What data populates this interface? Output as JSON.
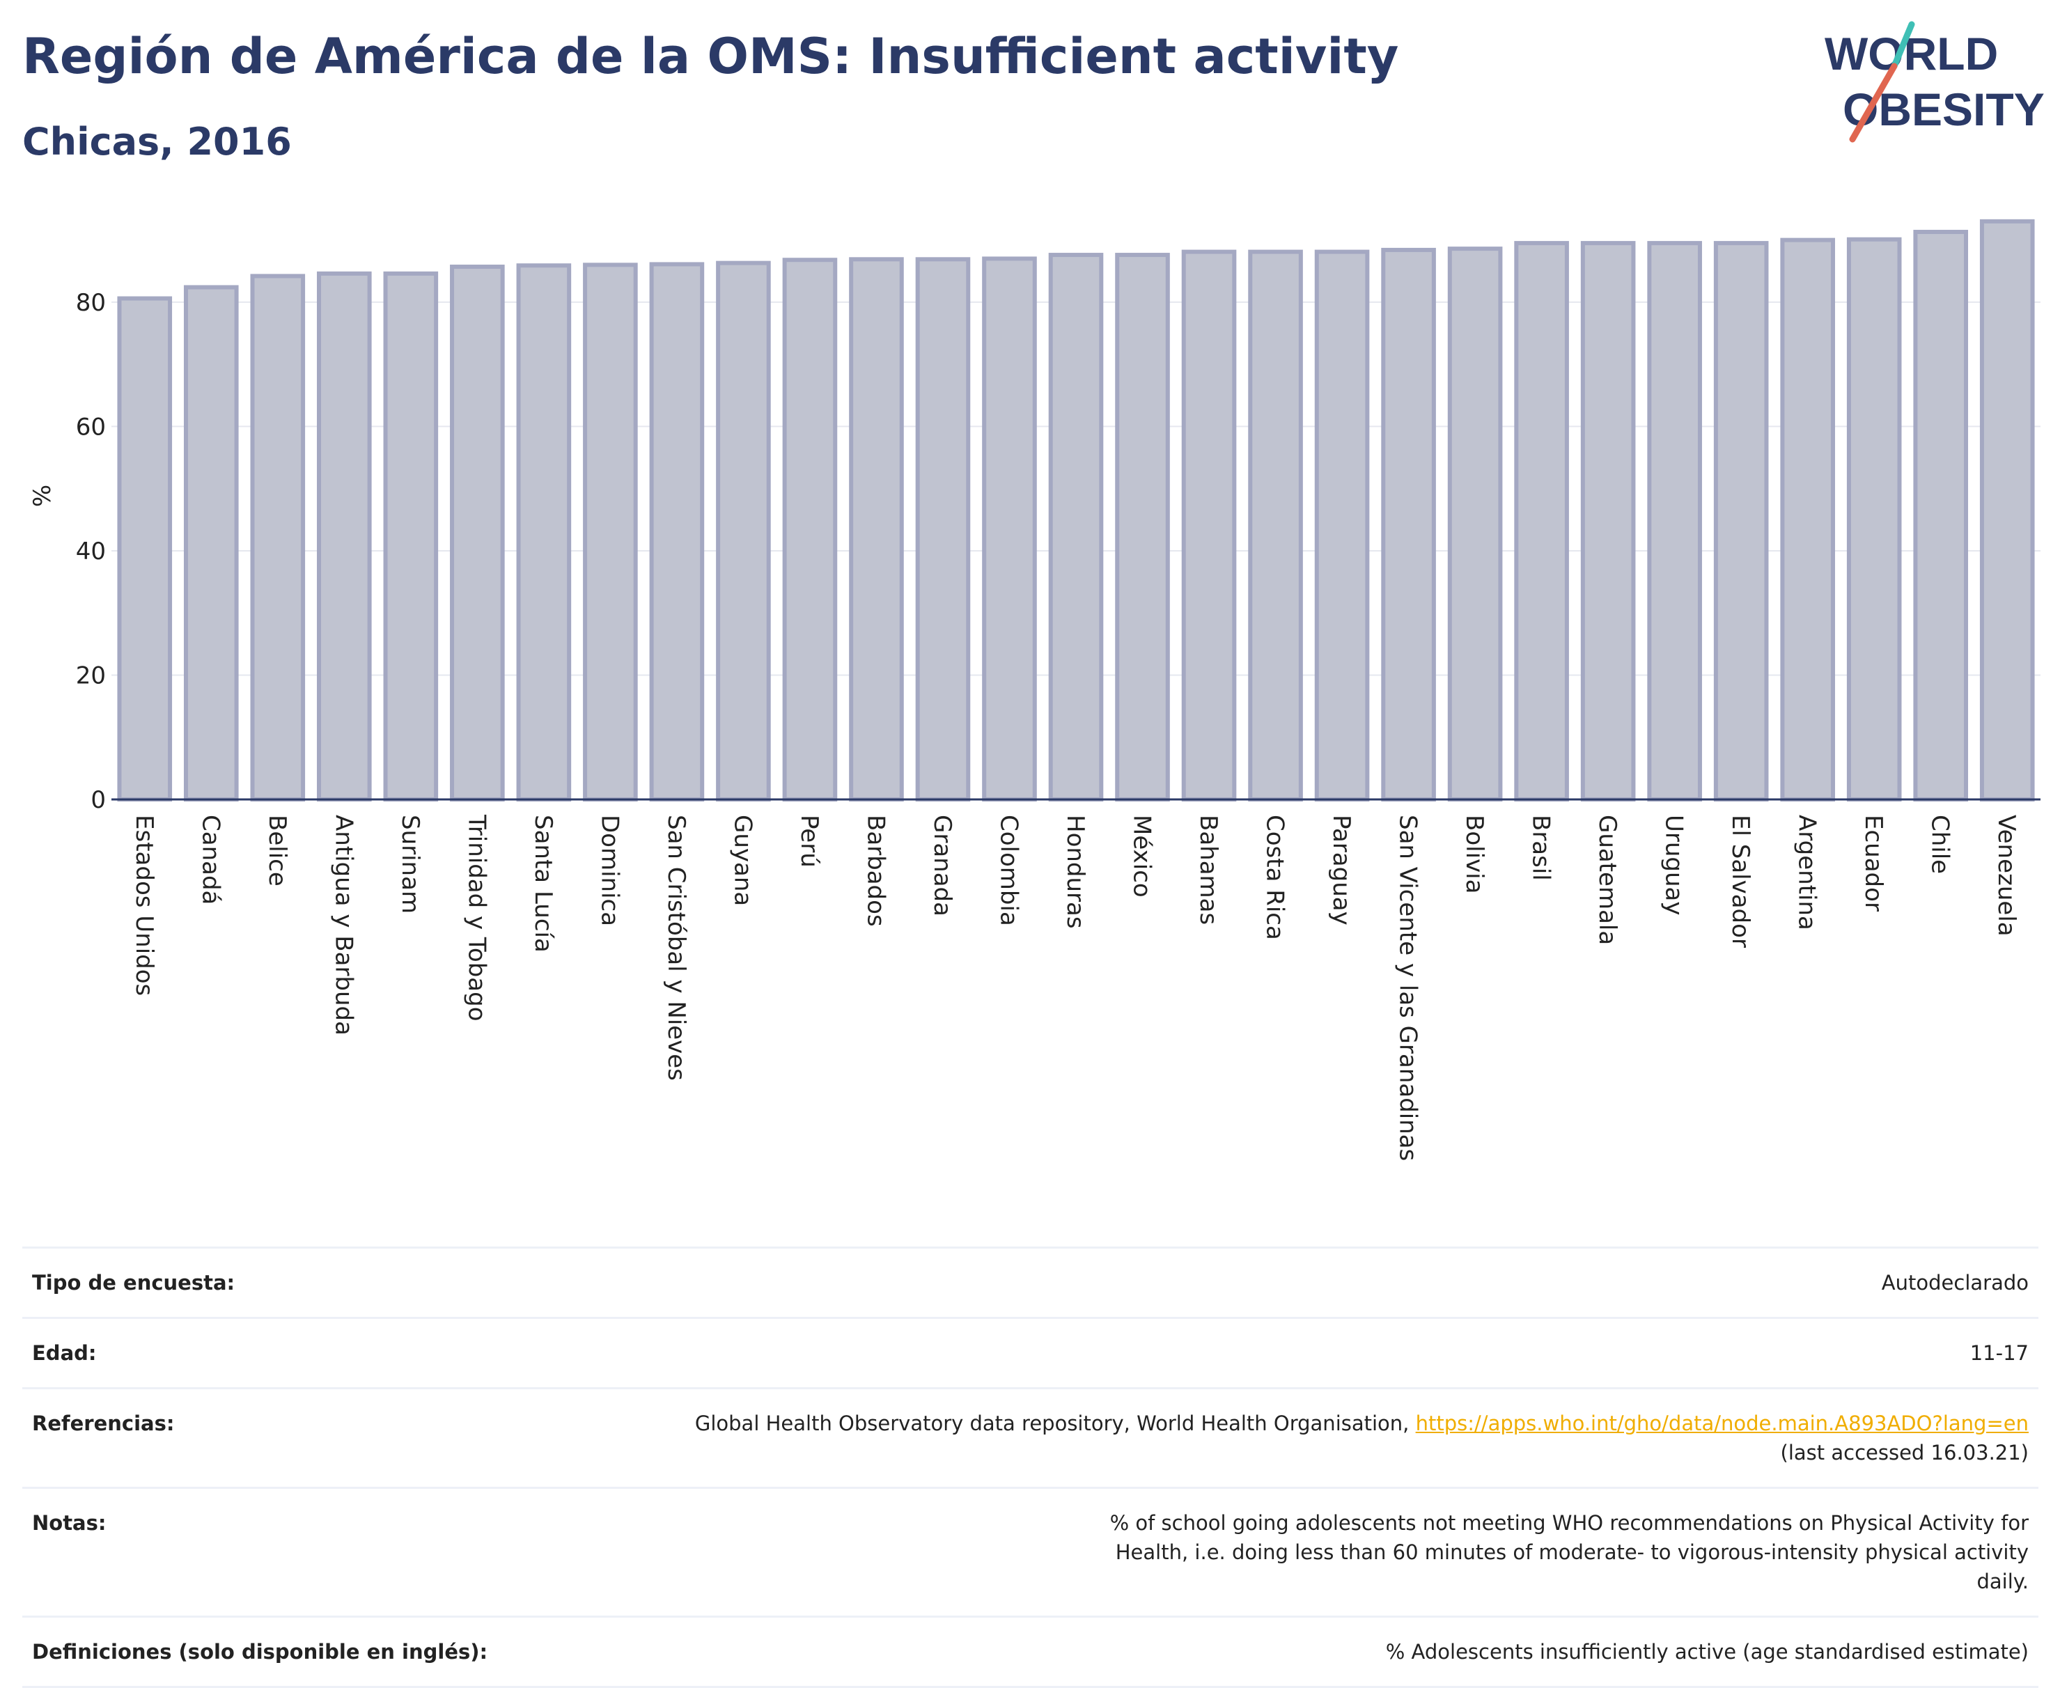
{
  "header": {
    "title": "Región de América de la OMS: Insufficient activity",
    "subtitle": "Chicas, 2016"
  },
  "logo": {
    "line1": "WORLD",
    "line2": "OBESITY",
    "colors": {
      "text": "#2b3a67",
      "slash_teal": "#3fbfb5",
      "slash_red": "#e06650"
    }
  },
  "chart_data": {
    "type": "bar",
    "title": "Región de América de la OMS: Insufficient activity",
    "subtitle": "Chicas, 2016",
    "ylabel": "%",
    "xlabel": "",
    "ylim": [
      0,
      95
    ],
    "yticks": [
      0,
      20,
      40,
      60,
      80
    ],
    "grid": true,
    "categories": [
      "Estados Unidos",
      "Canadá",
      "Belice",
      "Antigua y Barbuda",
      "Surinam",
      "Trinidad y Tobago",
      "Santa Lucía",
      "Dominica",
      "San Cristóbal y Nieves",
      "Guyana",
      "Perú",
      "Barbados",
      "Granada",
      "Colombia",
      "Honduras",
      "México",
      "Bahamas",
      "Costa Rica",
      "Paraguay",
      "San Vicente y las Granadinas",
      "Bolivia",
      "Brasil",
      "Guatemala",
      "Uruguay",
      "El Salvador",
      "Argentina",
      "Ecuador",
      "Chile",
      "Venezuela"
    ],
    "values": [
      80.6,
      82.4,
      84.2,
      84.6,
      84.6,
      85.7,
      85.9,
      86.0,
      86.1,
      86.3,
      86.8,
      86.9,
      86.9,
      87.0,
      87.6,
      87.6,
      88.1,
      88.1,
      88.1,
      88.4,
      88.6,
      89.5,
      89.5,
      89.5,
      89.5,
      90.0,
      90.1,
      91.3,
      93.0
    ],
    "colors": {
      "bar_fill": "#c0c3d0",
      "bar_stroke": "#a4a8c2",
      "axis": "#2b3a67",
      "grid": "#e6e8ef"
    }
  },
  "info": {
    "rows": [
      {
        "key": "Tipo de encuesta:",
        "value": "Autodeclarado"
      },
      {
        "key": "Edad:",
        "value": "11-17"
      },
      {
        "key": "Referencias:",
        "value_prefix": "Global Health Observatory data repository, World Health Organisation, ",
        "link": "https://apps.who.int/gho/data/node.main.A893ADO?lang=en",
        "value_suffix": "(last accessed 16.03.21)"
      },
      {
        "key": "Notas:",
        "value": "% of school going adolescents not meeting WHO recommendations on Physical Activity for Health, i.e. doing less than 60 minutes of moderate- to vigorous-intensity physical activity daily."
      },
      {
        "key": "Definiciones (solo disponible en inglés):",
        "value": "% Adolescents insufficiently active (age standardised estimate)"
      }
    ]
  }
}
